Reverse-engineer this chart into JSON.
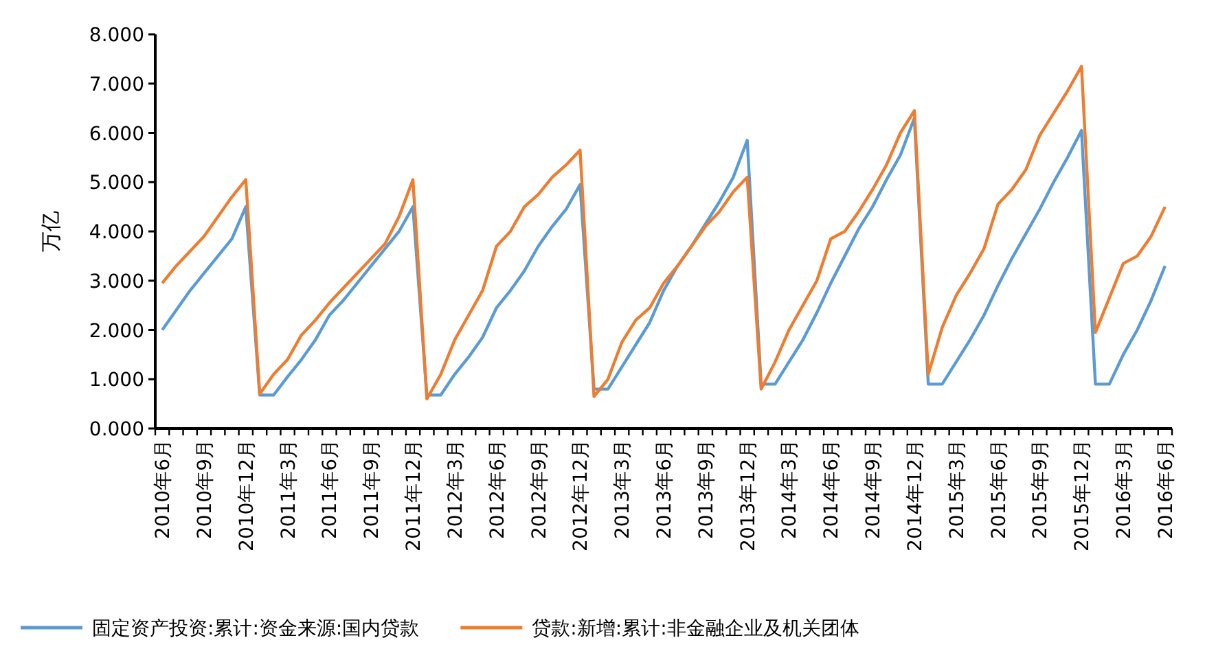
{
  "chart_data": {
    "type": "line",
    "ylabel": "万亿",
    "categories": [
      "2010年6月",
      null,
      null,
      "2010年9月",
      null,
      null,
      "2010年12月",
      null,
      null,
      "2011年3月",
      null,
      null,
      "2011年6月",
      null,
      null,
      "2011年9月",
      null,
      null,
      "2011年12月",
      null,
      null,
      "2012年3月",
      null,
      null,
      "2012年6月",
      null,
      null,
      "2012年9月",
      null,
      null,
      "2012年12月",
      null,
      null,
      "2013年3月",
      null,
      null,
      "2013年6月",
      null,
      null,
      "2013年9月",
      null,
      null,
      "2013年12月",
      null,
      null,
      "2014年3月",
      null,
      null,
      "2014年6月",
      null,
      null,
      "2014年9月",
      null,
      null,
      "2014年12月",
      null,
      null,
      "2015年3月",
      null,
      null,
      "2015年6月",
      null,
      null,
      "2015年9月",
      null,
      null,
      "2015年12月",
      null,
      null,
      "2016年3月",
      null,
      null,
      "2016年6月"
    ],
    "series": [
      {
        "name": "固定资产投资:累计:资金来源:国内贷款",
        "color": "#5b9bd5",
        "values": [
          2.0,
          2.4,
          2.8,
          3.15,
          3.5,
          3.85,
          4.5,
          0.68,
          0.68,
          1.05,
          1.4,
          1.8,
          2.3,
          2.6,
          2.95,
          3.3,
          3.65,
          4.0,
          4.5,
          0.68,
          0.68,
          1.1,
          1.45,
          1.85,
          2.45,
          2.8,
          3.2,
          3.7,
          4.1,
          4.45,
          4.95,
          0.8,
          0.8,
          1.25,
          1.7,
          2.15,
          2.8,
          3.3,
          3.7,
          4.15,
          4.6,
          5.1,
          5.85,
          0.9,
          0.9,
          1.35,
          1.8,
          2.35,
          2.95,
          3.5,
          4.05,
          4.5,
          5.05,
          5.55,
          6.3,
          0.9,
          0.9,
          1.35,
          1.8,
          2.3,
          2.9,
          3.45,
          3.95,
          4.45,
          5.0,
          5.5,
          6.05,
          0.9,
          0.9,
          1.5,
          2.0,
          2.6,
          3.3
        ]
      },
      {
        "name": "贷款:新增:累计:非金融企业及机关团体",
        "color": "#ed7d31",
        "values": [
          2.95,
          3.3,
          3.6,
          3.9,
          4.3,
          4.7,
          5.05,
          0.7,
          1.1,
          1.4,
          1.9,
          2.2,
          2.55,
          2.85,
          3.15,
          3.45,
          3.75,
          4.3,
          5.05,
          0.6,
          1.1,
          1.8,
          2.3,
          2.8,
          3.7,
          4.0,
          4.5,
          4.75,
          5.1,
          5.35,
          5.65,
          0.65,
          1.0,
          1.75,
          2.2,
          2.45,
          2.95,
          3.3,
          3.7,
          4.1,
          4.4,
          4.8,
          5.1,
          0.8,
          1.35,
          2.0,
          2.5,
          3.0,
          3.85,
          4.0,
          4.4,
          4.85,
          5.35,
          6.0,
          6.45,
          1.1,
          2.05,
          2.7,
          3.15,
          3.65,
          4.55,
          4.85,
          5.25,
          5.95,
          6.4,
          6.85,
          7.35,
          1.95,
          2.65,
          3.35,
          3.5,
          3.9,
          4.5
        ]
      }
    ],
    "ylim": [
      0,
      8
    ],
    "yticks": [
      {
        "value": 0,
        "label": "0.000"
      },
      {
        "value": 1,
        "label": "1.000"
      },
      {
        "value": 2,
        "label": "2.000"
      },
      {
        "value": 3,
        "label": "3.000"
      },
      {
        "value": 4,
        "label": "4.000"
      },
      {
        "value": 5,
        "label": "5.000"
      },
      {
        "value": 6,
        "label": "6.000"
      },
      {
        "value": 7,
        "label": "7.000"
      },
      {
        "value": 8,
        "label": "8.000"
      }
    ],
    "grid": false,
    "legend": "bottom",
    "marker": "none",
    "line_style": "solid"
  }
}
